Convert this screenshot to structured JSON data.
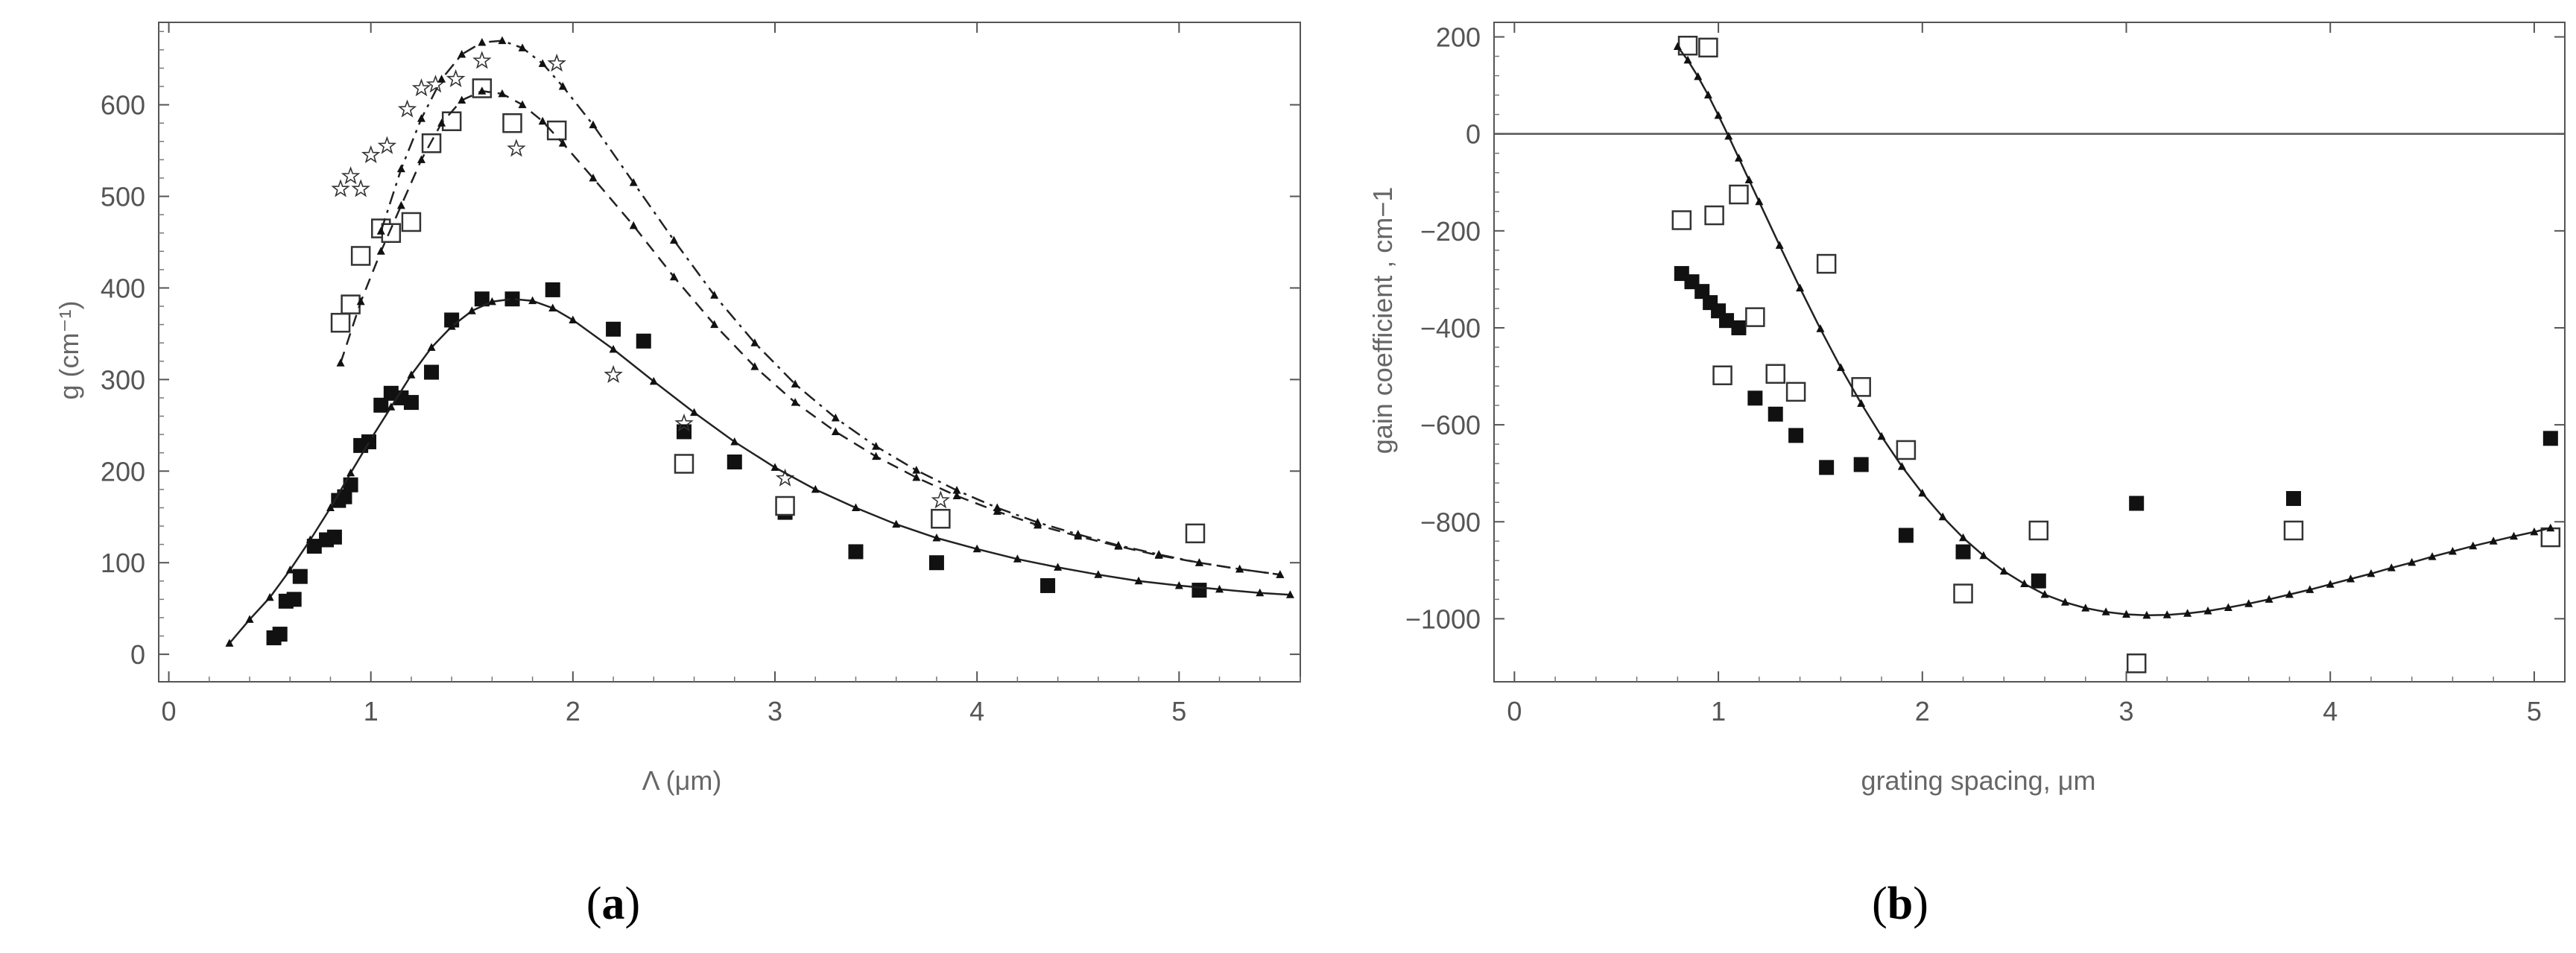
{
  "captions": [
    "(a)",
    "(b)"
  ],
  "chart_data": [
    {
      "type": "scatter",
      "xlabel": "Λ (μm)",
      "ylabel": "g (cm⁻¹)",
      "xlim": [
        -0.05,
        5.6
      ],
      "ylim": [
        -30,
        690
      ],
      "xticks": [
        0,
        1,
        2,
        3,
        4,
        5
      ],
      "yticks": [
        0,
        100,
        200,
        300,
        400,
        500,
        600
      ],
      "frame": true,
      "grid": false,
      "series": [
        {
          "marker": "filled-square",
          "points": [
            [
              0.52,
              18
            ],
            [
              0.55,
              22
            ],
            [
              0.58,
              58
            ],
            [
              0.62,
              60
            ],
            [
              0.65,
              85
            ],
            [
              0.72,
              118
            ],
            [
              0.78,
              125
            ],
            [
              0.82,
              128
            ],
            [
              0.84,
              168
            ],
            [
              0.87,
              172
            ],
            [
              0.9,
              185
            ],
            [
              0.95,
              228
            ],
            [
              0.99,
              232
            ],
            [
              1.05,
              272
            ],
            [
              1.1,
              285
            ],
            [
              1.15,
              280
            ],
            [
              1.2,
              275
            ],
            [
              1.3,
              308
            ],
            [
              1.4,
              365
            ],
            [
              1.55,
              388
            ],
            [
              1.7,
              388
            ],
            [
              1.9,
              398
            ],
            [
              2.2,
              355
            ],
            [
              2.35,
              342
            ],
            [
              2.55,
              243
            ],
            [
              2.8,
              210
            ],
            [
              3.05,
              155
            ],
            [
              3.4,
              112
            ],
            [
              3.8,
              100
            ],
            [
              4.35,
              75
            ],
            [
              5.1,
              70
            ]
          ]
        },
        {
          "marker": "open-square",
          "points": [
            [
              0.85,
              362
            ],
            [
              0.9,
              382
            ],
            [
              0.95,
              435
            ],
            [
              1.05,
              465
            ],
            [
              1.1,
              460
            ],
            [
              1.2,
              472
            ],
            [
              1.3,
              558
            ],
            [
              1.4,
              582
            ],
            [
              1.55,
              618
            ],
            [
              1.7,
              580
            ],
            [
              1.92,
              572
            ],
            [
              2.55,
              208
            ],
            [
              3.05,
              162
            ],
            [
              3.82,
              148
            ],
            [
              5.08,
              132
            ]
          ]
        },
        {
          "marker": "star",
          "points": [
            [
              0.85,
              508
            ],
            [
              0.9,
              522
            ],
            [
              0.95,
              508
            ],
            [
              1.0,
              545
            ],
            [
              1.08,
              555
            ],
            [
              1.18,
              595
            ],
            [
              1.25,
              618
            ],
            [
              1.32,
              622
            ],
            [
              1.42,
              628
            ],
            [
              1.55,
              648
            ],
            [
              1.72,
              552
            ],
            [
              1.92,
              645
            ],
            [
              2.2,
              305
            ],
            [
              2.55,
              252
            ],
            [
              3.05,
              192
            ],
            [
              3.82,
              168
            ]
          ]
        },
        {
          "marker": "small-triangle",
          "line": "solid",
          "points": [
            [
              0.3,
              12
            ],
            [
              0.4,
              38
            ],
            [
              0.5,
              62
            ],
            [
              0.6,
              92
            ],
            [
              0.7,
              125
            ],
            [
              0.8,
              160
            ],
            [
              0.9,
              198
            ],
            [
              1.0,
              235
            ],
            [
              1.1,
              270
            ],
            [
              1.2,
              305
            ],
            [
              1.3,
              335
            ],
            [
              1.4,
              358
            ],
            [
              1.5,
              375
            ],
            [
              1.6,
              385
            ],
            [
              1.7,
              388
            ],
            [
              1.8,
              386
            ],
            [
              1.9,
              378
            ],
            [
              2.0,
              365
            ],
            [
              2.2,
              333
            ],
            [
              2.4,
              298
            ],
            [
              2.6,
              264
            ],
            [
              2.8,
              232
            ],
            [
              3.0,
              204
            ],
            [
              3.2,
              180
            ],
            [
              3.4,
              160
            ],
            [
              3.6,
              142
            ],
            [
              3.8,
              127
            ],
            [
              4.0,
              115
            ],
            [
              4.2,
              104
            ],
            [
              4.4,
              95
            ],
            [
              4.6,
              87
            ],
            [
              4.8,
              80
            ],
            [
              5.0,
              75
            ],
            [
              5.2,
              71
            ],
            [
              5.4,
              67
            ],
            [
              5.55,
              65
            ]
          ]
        },
        {
          "marker": "small-triangle",
          "line": "dashed",
          "points": [
            [
              0.85,
              318
            ],
            [
              0.95,
              385
            ],
            [
              1.05,
              440
            ],
            [
              1.15,
              490
            ],
            [
              1.25,
              540
            ],
            [
              1.35,
              580
            ],
            [
              1.45,
              605
            ],
            [
              1.55,
              615
            ],
            [
              1.65,
              612
            ],
            [
              1.75,
              600
            ],
            [
              1.85,
              582
            ],
            [
              1.95,
              558
            ],
            [
              2.1,
              520
            ],
            [
              2.3,
              468
            ],
            [
              2.5,
              412
            ],
            [
              2.7,
              360
            ],
            [
              2.9,
              314
            ],
            [
              3.1,
              275
            ],
            [
              3.3,
              243
            ],
            [
              3.5,
              216
            ],
            [
              3.7,
              193
            ],
            [
              3.9,
              173
            ],
            [
              4.1,
              156
            ],
            [
              4.3,
              141
            ],
            [
              4.5,
              129
            ],
            [
              4.7,
              118
            ],
            [
              4.9,
              108
            ],
            [
              5.1,
              100
            ],
            [
              5.3,
              93
            ],
            [
              5.5,
              87
            ]
          ]
        },
        {
          "marker": "small-triangle",
          "line": "dash-dot",
          "points": [
            [
              1.05,
              462
            ],
            [
              1.15,
              530
            ],
            [
              1.25,
              585
            ],
            [
              1.35,
              628
            ],
            [
              1.45,
              655
            ],
            [
              1.55,
              668
            ],
            [
              1.65,
              670
            ],
            [
              1.75,
              662
            ],
            [
              1.85,
              645
            ],
            [
              1.95,
              620
            ],
            [
              2.1,
              578
            ],
            [
              2.3,
              515
            ],
            [
              2.5,
              452
            ],
            [
              2.7,
              392
            ],
            [
              2.9,
              340
            ],
            [
              3.1,
              295
            ],
            [
              3.3,
              258
            ],
            [
              3.5,
              227
            ],
            [
              3.7,
              201
            ],
            [
              3.9,
              179
            ],
            [
              4.1,
              160
            ],
            [
              4.3,
              144
            ],
            [
              4.5,
              131
            ],
            [
              4.7,
              119
            ],
            [
              4.9,
              109
            ],
            [
              5.1,
              100
            ],
            [
              5.3,
              93
            ],
            [
              5.5,
              87
            ]
          ]
        }
      ]
    },
    {
      "type": "scatter",
      "xlabel": "grating spacing,  μm",
      "ylabel": "gain coefficient ,  cm−1",
      "xlim": [
        -0.1,
        5.15
      ],
      "ylim": [
        -1130,
        230
      ],
      "xticks": [
        0,
        1,
        2,
        3,
        4,
        5
      ],
      "yticks": [
        200,
        0,
        -200,
        -400,
        -600,
        -800,
        -1000
      ],
      "frame": true,
      "grid": false,
      "reference_line_y": 0,
      "series": [
        {
          "marker": "filled-square",
          "points": [
            [
              0.82,
              -288
            ],
            [
              0.87,
              -305
            ],
            [
              0.92,
              -325
            ],
            [
              0.96,
              -348
            ],
            [
              1.0,
              -365
            ],
            [
              1.04,
              -385
            ],
            [
              1.1,
              -400
            ],
            [
              1.18,
              -545
            ],
            [
              1.28,
              -578
            ],
            [
              1.38,
              -622
            ],
            [
              1.53,
              -688
            ],
            [
              1.7,
              -682
            ],
            [
              1.92,
              -828
            ],
            [
              2.2,
              -862
            ],
            [
              2.57,
              -922
            ],
            [
              3.05,
              -762
            ],
            [
              3.82,
              -752
            ],
            [
              5.08,
              -628
            ]
          ]
        },
        {
          "marker": "open-square",
          "points": [
            [
              0.82,
              -178
            ],
            [
              0.85,
              182
            ],
            [
              0.95,
              178
            ],
            [
              0.98,
              -168
            ],
            [
              1.02,
              -498
            ],
            [
              1.1,
              -125
            ],
            [
              1.18,
              -378
            ],
            [
              1.28,
              -495
            ],
            [
              1.38,
              -532
            ],
            [
              1.53,
              -268
            ],
            [
              1.7,
              -522
            ],
            [
              1.92,
              -652
            ],
            [
              2.2,
              -948
            ],
            [
              2.57,
              -818
            ],
            [
              3.05,
              -1092
            ],
            [
              3.82,
              -818
            ],
            [
              5.08,
              -832
            ]
          ]
        },
        {
          "marker": "small-triangle",
          "line": "solid",
          "points": [
            [
              0.8,
              180
            ],
            [
              0.85,
              152
            ],
            [
              0.9,
              118
            ],
            [
              0.95,
              80
            ],
            [
              1.0,
              38
            ],
            [
              1.05,
              -5
            ],
            [
              1.1,
              -50
            ],
            [
              1.15,
              -95
            ],
            [
              1.2,
              -140
            ],
            [
              1.3,
              -230
            ],
            [
              1.4,
              -318
            ],
            [
              1.5,
              -402
            ],
            [
              1.6,
              -482
            ],
            [
              1.7,
              -556
            ],
            [
              1.8,
              -624
            ],
            [
              1.9,
              -686
            ],
            [
              2.0,
              -741
            ],
            [
              2.1,
              -790
            ],
            [
              2.2,
              -833
            ],
            [
              2.3,
              -870
            ],
            [
              2.4,
              -902
            ],
            [
              2.5,
              -928
            ],
            [
              2.6,
              -950
            ],
            [
              2.7,
              -966
            ],
            [
              2.8,
              -978
            ],
            [
              2.9,
              -986
            ],
            [
              3.0,
              -991
            ],
            [
              3.1,
              -993
            ],
            [
              3.2,
              -992
            ],
            [
              3.3,
              -989
            ],
            [
              3.4,
              -984
            ],
            [
              3.5,
              -977
            ],
            [
              3.6,
              -969
            ],
            [
              3.7,
              -960
            ],
            [
              3.8,
              -950
            ],
            [
              3.9,
              -940
            ],
            [
              4.0,
              -929
            ],
            [
              4.1,
              -918
            ],
            [
              4.2,
              -907
            ],
            [
              4.3,
              -895
            ],
            [
              4.4,
              -884
            ],
            [
              4.5,
              -872
            ],
            [
              4.6,
              -861
            ],
            [
              4.7,
              -850
            ],
            [
              4.8,
              -840
            ],
            [
              4.9,
              -830
            ],
            [
              5.0,
              -821
            ],
            [
              5.08,
              -813
            ]
          ]
        }
      ]
    }
  ]
}
